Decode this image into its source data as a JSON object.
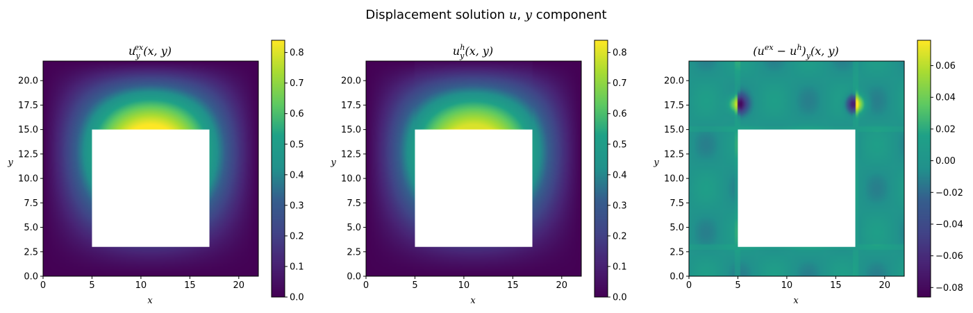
{
  "figure": {
    "suptitle_prefix": "Displacement solution ",
    "suptitle_var_u": "u",
    "suptitle_sep": ", ",
    "suptitle_var_y": "y",
    "suptitle_suffix": " component"
  },
  "chart_data": [
    {
      "type": "heatmap",
      "title_parts": [
        "u",
        "y",
        "ex",
        "(x, y)"
      ],
      "xlabel": "x",
      "ylabel": "y",
      "xlim": [
        0,
        22
      ],
      "ylim": [
        0,
        22
      ],
      "xticks": [
        0,
        5,
        10,
        15,
        20
      ],
      "xtick_labels": [
        "0",
        "5",
        "10",
        "15",
        "20"
      ],
      "yticks": [
        0,
        2.5,
        5,
        7.5,
        10,
        12.5,
        15,
        17.5,
        20
      ],
      "ytick_labels": [
        "0.0",
        "2.5",
        "5.0",
        "7.5",
        "10.0",
        "12.5",
        "15.0",
        "17.5",
        "20.0"
      ],
      "colormap": "viridis",
      "hole": {
        "x": [
          5,
          17
        ],
        "y": [
          3,
          15
        ]
      },
      "field": "exact",
      "colorbar": {
        "range": [
          0,
          0.84
        ],
        "ticks": [
          0,
          0.1,
          0.2,
          0.3,
          0.4,
          0.5,
          0.6,
          0.7,
          0.8
        ],
        "tick_labels": [
          "0.0",
          "0.1",
          "0.2",
          "0.3",
          "0.4",
          "0.5",
          "0.6",
          "0.7",
          "0.8"
        ]
      }
    },
    {
      "type": "heatmap",
      "title_parts": [
        "u",
        "y",
        "h",
        "(x, y)"
      ],
      "xlabel": "x",
      "ylabel": "y",
      "xlim": [
        0,
        22
      ],
      "ylim": [
        0,
        22
      ],
      "xticks": [
        0,
        5,
        10,
        15,
        20
      ],
      "xtick_labels": [
        "0",
        "5",
        "10",
        "15",
        "20"
      ],
      "yticks": [
        0,
        2.5,
        5,
        7.5,
        10,
        12.5,
        15,
        17.5,
        20
      ],
      "ytick_labels": [
        "0.0",
        "2.5",
        "5.0",
        "7.5",
        "10.0",
        "12.5",
        "15.0",
        "17.5",
        "20.0"
      ],
      "colormap": "viridis",
      "hole": {
        "x": [
          5,
          17
        ],
        "y": [
          3,
          15
        ]
      },
      "field": "approx",
      "colorbar": {
        "range": [
          0,
          0.84
        ],
        "ticks": [
          0,
          0.1,
          0.2,
          0.3,
          0.4,
          0.5,
          0.6,
          0.7,
          0.8
        ],
        "tick_labels": [
          "0.0",
          "0.1",
          "0.2",
          "0.3",
          "0.4",
          "0.5",
          "0.6",
          "0.7",
          "0.8"
        ]
      }
    },
    {
      "type": "heatmap",
      "title_parts": [
        "(u",
        "ex",
        " − u",
        "h",
        ")",
        "y",
        "(x, y)"
      ],
      "xlabel": "x",
      "ylabel": "y",
      "xlim": [
        0,
        22
      ],
      "ylim": [
        0,
        22
      ],
      "xticks": [
        0,
        5,
        10,
        15,
        20
      ],
      "xtick_labels": [
        "0",
        "5",
        "10",
        "15",
        "20"
      ],
      "yticks": [
        0,
        2.5,
        5,
        7.5,
        10,
        12.5,
        15,
        17.5,
        20
      ],
      "ytick_labels": [
        "0.0",
        "2.5",
        "5.0",
        "7.5",
        "10.0",
        "12.5",
        "15.0",
        "17.5",
        "20.0"
      ],
      "colormap": "viridis",
      "hole": {
        "x": [
          5,
          17
        ],
        "y": [
          3,
          15
        ]
      },
      "field": "error",
      "colorbar": {
        "range": [
          -0.086,
          0.076
        ],
        "ticks": [
          -0.08,
          -0.06,
          -0.04,
          -0.02,
          0,
          0.02,
          0.04,
          0.06
        ],
        "tick_labels": [
          "−0.08",
          "−0.06",
          "−0.04",
          "−0.02",
          "0.00",
          "0.02",
          "0.04",
          "0.06"
        ]
      }
    }
  ]
}
